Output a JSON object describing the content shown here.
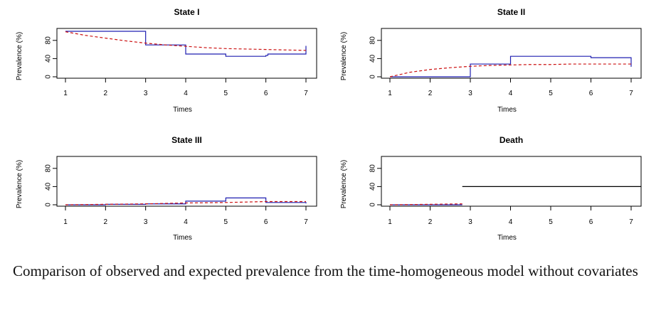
{
  "figure": {
    "caption": "Comparison of observed and expected prevalence from the time-homogeneous model without covariates",
    "colors": {
      "observed": "#1f1fb0",
      "expected": "#cc1111",
      "axis": "#000000"
    }
  },
  "chart_data": [
    {
      "type": "line",
      "title": "State I",
      "xlabel": "Times",
      "ylabel": "Prevalence (%)",
      "xlim": [
        1,
        7
      ],
      "ylim": [
        0,
        100
      ],
      "xticks": [
        "1",
        "2",
        "3",
        "4",
        "5",
        "6",
        "7"
      ],
      "yticks": [
        "0",
        "40",
        "80"
      ],
      "series": [
        {
          "style": "solid-step",
          "color": "#1f1fb0",
          "x": [
            1,
            2.95,
            3,
            4,
            5,
            6,
            6.05,
            6.95,
            7
          ],
          "y": [
            100,
            100,
            70,
            50,
            45,
            47,
            50,
            50,
            68
          ]
        },
        {
          "style": "dashed",
          "color": "#cc1111",
          "x": [
            1,
            1.5,
            2,
            2.5,
            3,
            3.5,
            4,
            4.5,
            5,
            5.5,
            6,
            6.5,
            7
          ],
          "y": [
            99,
            91,
            85,
            79,
            74,
            70,
            67,
            64,
            62,
            61,
            60,
            59,
            58
          ]
        }
      ]
    },
    {
      "type": "line",
      "title": "State II",
      "xlabel": "Times",
      "ylabel": "Prevalence (%)",
      "xlim": [
        1,
        7
      ],
      "ylim": [
        0,
        100
      ],
      "xticks": [
        "1",
        "2",
        "3",
        "4",
        "5",
        "6",
        "7"
      ],
      "yticks": [
        "0",
        "40",
        "80"
      ],
      "series": [
        {
          "style": "solid-step",
          "color": "#1f1fb0",
          "x": [
            1,
            2.95,
            3,
            4,
            6,
            6.95,
            7
          ],
          "y": [
            0,
            0,
            28,
            45,
            42,
            42,
            22
          ]
        },
        {
          "style": "dashed",
          "color": "#cc1111",
          "x": [
            1,
            1.5,
            2,
            2.5,
            3,
            3.5,
            4,
            4.5,
            5,
            5.5,
            6,
            6.5,
            7
          ],
          "y": [
            0,
            10,
            16,
            20,
            23,
            25,
            26,
            27,
            27,
            28,
            28,
            28,
            28
          ]
        }
      ]
    },
    {
      "type": "line",
      "title": "State III",
      "xlabel": "Times",
      "ylabel": "Prevalence (%)",
      "xlim": [
        1,
        7
      ],
      "ylim": [
        0,
        100
      ],
      "xticks": [
        "1",
        "2",
        "3",
        "4",
        "5",
        "6",
        "7"
      ],
      "yticks": [
        "0",
        "40",
        "80"
      ],
      "series": [
        {
          "style": "solid-step",
          "color": "#1f1fb0",
          "x": [
            1,
            2,
            3,
            4,
            5,
            6,
            7
          ],
          "y": [
            0,
            1,
            2,
            8,
            15,
            5,
            3
          ]
        },
        {
          "style": "dashed",
          "color": "#cc1111",
          "x": [
            1,
            2,
            3,
            4,
            5,
            6,
            7
          ],
          "y": [
            0,
            1,
            2,
            4,
            5,
            7,
            7
          ]
        }
      ]
    },
    {
      "type": "line",
      "title": "Death",
      "xlabel": "Times",
      "ylabel": "Prevalence (%)",
      "xlim": [
        1,
        7
      ],
      "ylim": [
        0,
        100
      ],
      "xticks": [
        "1",
        "2",
        "3",
        "4",
        "5",
        "6",
        "7"
      ],
      "yticks": [
        "0",
        "40",
        "80"
      ],
      "series": [
        {
          "style": "solid-step",
          "color": "#1f1fb0",
          "x": [
            1,
            2.8
          ],
          "y": [
            0,
            0
          ]
        },
        {
          "style": "dashed",
          "color": "#cc1111",
          "x": [
            1,
            2,
            2.8
          ],
          "y": [
            0,
            1,
            2
          ]
        },
        {
          "style": "solid-step",
          "color": "#000000",
          "x": [
            2.8,
            7.25
          ],
          "y": [
            40,
            40
          ]
        }
      ]
    }
  ]
}
